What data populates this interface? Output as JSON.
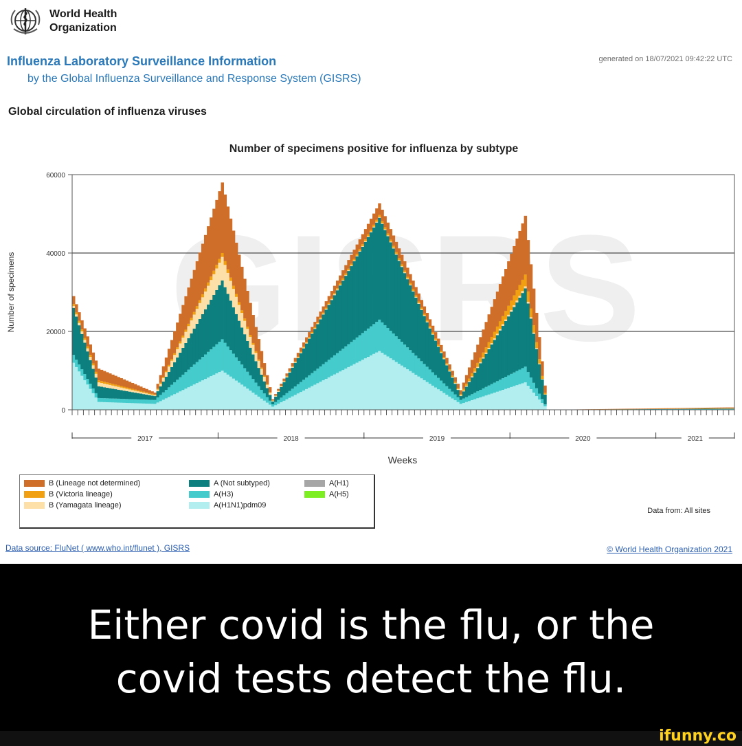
{
  "header": {
    "org_line_1": "World Health",
    "org_line_2": "Organization",
    "title": "Influenza Laboratory Surveillance Information",
    "subtitle": "by the Global Influenza Surveillance and Response System (GISRS)",
    "generated": "generated on 18/07/2021 09:42:22 UTC"
  },
  "section_title": "Global circulation of influenza viruses",
  "chart_data": {
    "type": "area",
    "title": "Number of specimens positive for influenza by subtype",
    "xlabel": "Weeks",
    "ylabel": "Number of specimens",
    "ylim": [
      0,
      60000
    ],
    "yticks": [
      0,
      20000,
      40000,
      60000
    ],
    "grid": true,
    "stacked": true,
    "watermark": "GISRS",
    "year_labels": [
      "2017",
      "2018",
      "2019",
      "2020",
      "2021"
    ],
    "series_order": [
      "A(H1N1)pdm09",
      "A(H3)",
      "A(Not subtyped)",
      "B (Yamagata lineage)",
      "B (Victoria lineage)",
      "B (Lineage not determined)"
    ],
    "colors": {
      "A(H1N1)pdm09": "#b2eef0",
      "A(H3)": "#45cbcb",
      "A(Not subtyped)": "#0d7f7f",
      "B (Yamagata lineage)": "#fddfa8",
      "B (Victoria lineage)": "#f0a010",
      "B (Lineage not determined)": "#cf6e28"
    },
    "key_points": [
      {
        "week": "2017-W01",
        "A(H1N1)pdm09": 12000,
        "A(H3)": 2000,
        "A(Not subtyped)": 12000,
        "B (Yamagata lineage)": 500,
        "B (Victoria lineage)": 500,
        "B (Lineage not determined)": 2000
      },
      {
        "week": "2017-W10",
        "A(H1N1)pdm09": 2000,
        "A(H3)": 1000,
        "A(Not subtyped)": 3000,
        "B (Yamagata lineage)": 1000,
        "B (Victoria lineage)": 500,
        "B (Lineage not determined)": 3000
      },
      {
        "week": "2017-W30",
        "A(H1N1)pdm09": 1500,
        "A(H3)": 1000,
        "A(Not subtyped)": 1000,
        "B (Yamagata lineage)": 200,
        "B (Victoria lineage)": 200,
        "B (Lineage not determined)": 500
      },
      {
        "week": "2018-W02",
        "A(H1N1)pdm09": 10000,
        "A(H3)": 8000,
        "A(Not subtyped)": 15000,
        "B (Yamagata lineage)": 6000,
        "B (Victoria lineage)": 1000,
        "B (Lineage not determined)": 18000
      },
      {
        "week": "2018-W20",
        "A(H1N1)pdm09": 800,
        "A(H3)": 600,
        "A(Not subtyped)": 700,
        "B (Yamagata lineage)": 200,
        "B (Victoria lineage)": 100,
        "B (Lineage not determined)": 300
      },
      {
        "week": "2019-W06",
        "A(H1N1)pdm09": 15000,
        "A(H3)": 8000,
        "A(Not subtyped)": 26000,
        "B (Yamagata lineage)": 200,
        "B (Victoria lineage)": 500,
        "B (Lineage not determined)": 3000
      },
      {
        "week": "2019-W35",
        "A(H1N1)pdm09": 1500,
        "A(H3)": 1000,
        "A(Not subtyped)": 1000,
        "B (Yamagata lineage)": 200,
        "B (Victoria lineage)": 300,
        "B (Lineage not determined)": 1000
      },
      {
        "week": "2020-W06",
        "A(H1N1)pdm09": 7000,
        "A(H3)": 4000,
        "A(Not subtyped)": 20000,
        "B (Yamagata lineage)": 500,
        "B (Victoria lineage)": 3000,
        "B (Lineage not determined)": 15000
      },
      {
        "week": "2020-W14",
        "A(H1N1)pdm09": 0,
        "A(H3)": 0,
        "A(Not subtyped)": 0,
        "B (Yamagata lineage)": 0,
        "B (Victoria lineage)": 0,
        "B (Lineage not determined)": 0
      },
      {
        "week": "2021-W26",
        "A(H1N1)pdm09": 100,
        "A(H3)": 100,
        "A(Not subtyped)": 100,
        "B (Yamagata lineage)": 0,
        "B (Victoria lineage)": 100,
        "B (Lineage not determined)": 200
      }
    ]
  },
  "legend": {
    "items": [
      {
        "label": "B (Lineage not determined)",
        "color": "#cf6e28"
      },
      {
        "label": "B (Victoria lineage)",
        "color": "#f0a010"
      },
      {
        "label": "B (Yamagata lineage)",
        "color": "#fddfa8"
      },
      {
        "label": "A (Not subtyped)",
        "color": "#0d7f7f"
      },
      {
        "label": "A(H3)",
        "color": "#45cbcb"
      },
      {
        "label": "A(H1N1)pdm09",
        "color": "#b2eef0"
      },
      {
        "label": "A(H1)",
        "color": "#a6a6a6"
      },
      {
        "label": "A(H5)",
        "color": "#7cee22"
      }
    ]
  },
  "data_from": "Data from: All sites",
  "footer": {
    "data_source": "Data source: FluNet ( www.who.int/flunet ), GISRS",
    "copyright": "© World Health Organization 2021"
  },
  "meme": {
    "caption_line_1": "Either covid is the flu, or the",
    "caption_line_2": "covid tests detect the flu.",
    "brand": "ifunny.co"
  }
}
